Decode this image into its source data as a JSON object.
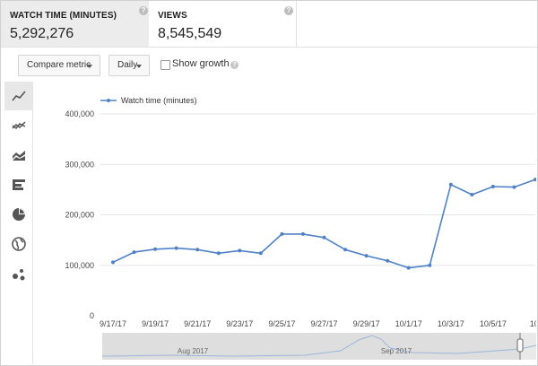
{
  "metrics": {
    "watch_time": {
      "label": "WATCH TIME (MINUTES)",
      "value": "5,292,276",
      "help_glyph": "?"
    },
    "views": {
      "label": "VIEWS",
      "value": "8,545,549",
      "help_glyph": "?"
    }
  },
  "toolbar": {
    "compare_metric": "Compare metric",
    "interval": "Daily",
    "show_growth": "Show growth",
    "show_growth_checked": false,
    "help_glyph": "?"
  },
  "sidebar": {
    "items": [
      {
        "icon": "line-chart-icon",
        "active": true
      },
      {
        "icon": "multi-line-chart-icon",
        "active": false
      },
      {
        "icon": "stacked-area-chart-icon",
        "active": false
      },
      {
        "icon": "bar-chart-icon",
        "active": false
      },
      {
        "icon": "pie-chart-icon",
        "active": false
      },
      {
        "icon": "globe-map-icon",
        "active": false
      },
      {
        "icon": "bubble-chart-icon",
        "active": false
      }
    ]
  },
  "colors": {
    "series": "#4f81c7",
    "grid": "#e6e6e6",
    "active_card": "#ececec"
  },
  "chart_data": {
    "type": "line",
    "legend": "Watch time (minutes)",
    "legend_position": "top-left",
    "y_ticks": [
      "400,000",
      "300,000",
      "200,000",
      "100,000",
      "0"
    ],
    "y_tick_values": [
      400000,
      300000,
      200000,
      100000,
      0
    ],
    "ylim": [
      0,
      400000
    ],
    "x_tick_labels": [
      "9/17/17",
      "9/19/17",
      "9/21/17",
      "9/23/17",
      "9/25/17",
      "9/27/17",
      "9/29/17",
      "10/1/17",
      "10/3/17",
      "10/5/17",
      "10/"
    ],
    "grid": true,
    "series": [
      {
        "name": "Watch time (minutes)",
        "x": [
          "9/17/17",
          "9/18/17",
          "9/19/17",
          "9/20/17",
          "9/21/17",
          "9/22/17",
          "9/23/17",
          "9/24/17",
          "9/25/17",
          "9/26/17",
          "9/27/17",
          "9/28/17",
          "9/29/17",
          "9/30/17",
          "10/1/17",
          "10/2/17",
          "10/3/17",
          "10/4/17",
          "10/5/17",
          "10/6/17",
          "10/7/17"
        ],
        "values": [
          106000,
          126000,
          132000,
          134000,
          131000,
          124000,
          129000,
          124000,
          162000,
          162000,
          155000,
          131000,
          119000,
          109000,
          95000,
          100000,
          260000,
          240000,
          256000,
          255000,
          270000
        ]
      }
    ],
    "navigator": {
      "labels": [
        "Aug 2017",
        "Sep 2017"
      ]
    }
  }
}
